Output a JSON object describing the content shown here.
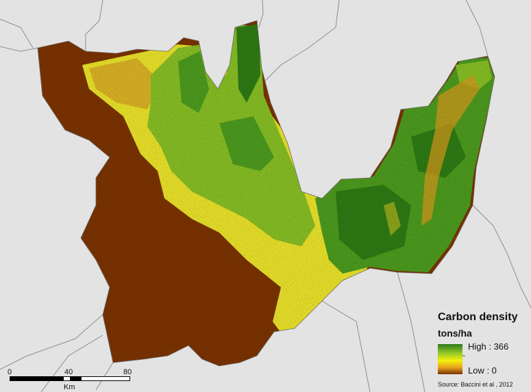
{
  "legend": {
    "title": "Carbon density",
    "units": "tons/ha",
    "high_label": "High : 366",
    "mid_label": "-",
    "low_label": "Low : 0",
    "colors": [
      "#2b7a18",
      "#8fc42a",
      "#f5f20a",
      "#e6a020",
      "#7a3000"
    ]
  },
  "source": "Source: Baccini et al , 2012",
  "scalebar": {
    "ticks": [
      "0",
      "40",
      "80"
    ],
    "unit": "Km"
  },
  "colors": {
    "background": "#e3e3e3",
    "border": "#8c8c8c",
    "low_carbon": "#7b3300",
    "medium_carbon": "#e8e12a",
    "high_carbon": "#4c9a1e",
    "very_high_carbon": "#2e7a14"
  }
}
